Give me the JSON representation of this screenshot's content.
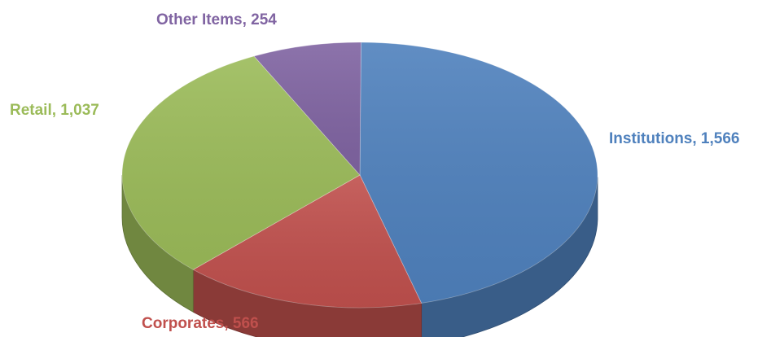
{
  "chart_data": {
    "type": "pie",
    "style": "3d",
    "slices": [
      {
        "label": "Institutions",
        "value": 1566,
        "display": "Institutions, 1,566",
        "color": "#4f81bd"
      },
      {
        "label": "Corporates",
        "value": 566,
        "display": "Corporates, 566",
        "color": "#c0504d"
      },
      {
        "label": "Retail",
        "value": 1037,
        "display": "Retail, 1,037",
        "color": "#9bbb59"
      },
      {
        "label": "Other Items",
        "value": 254,
        "display": "Other Items, 254",
        "color": "#8064a2"
      }
    ],
    "legend": "none",
    "data_labels": "category-and-value"
  }
}
